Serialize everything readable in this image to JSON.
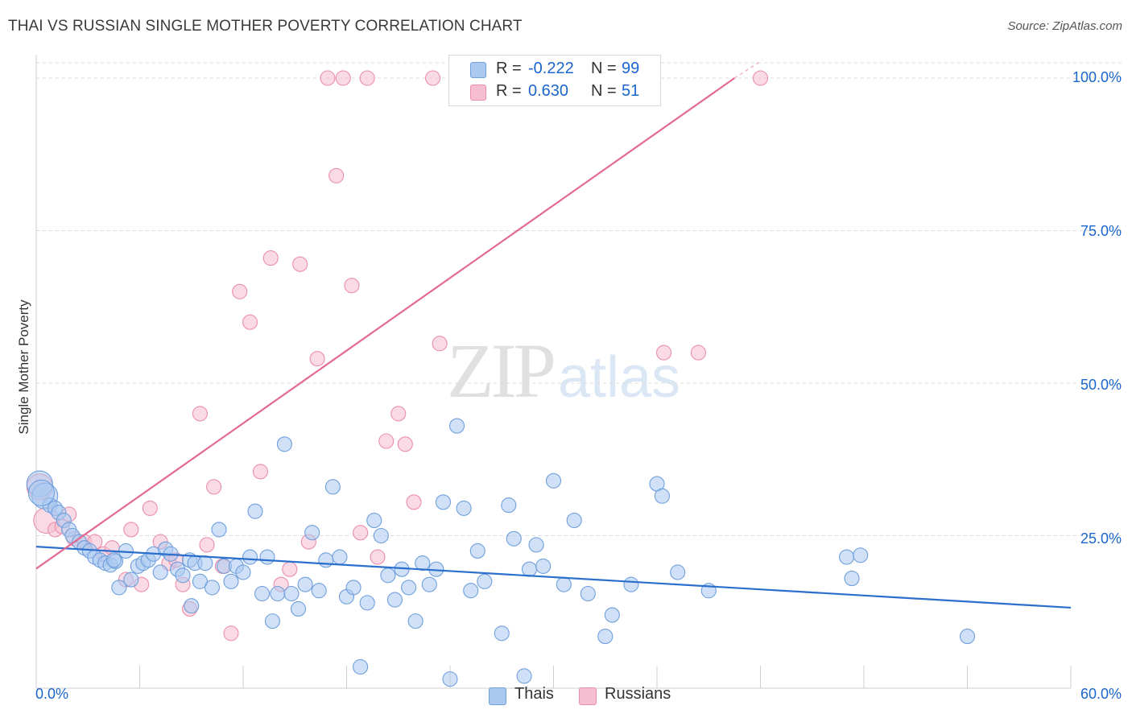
{
  "header": {
    "title": "THAI VS RUSSIAN SINGLE MOTHER POVERTY CORRELATION CHART",
    "source": "Source: ZipAtlas.com"
  },
  "watermark": {
    "zip": "ZIP",
    "atlas": "atlas"
  },
  "legend": {
    "thai": {
      "r_label": "R =",
      "r_value": "-0.222",
      "n_label": "N =",
      "n_value": "99"
    },
    "russian": {
      "r_label": "R =",
      "r_value": "0.630",
      "n_label": "N =",
      "n_value": "51"
    }
  },
  "bottom_legend": {
    "thai": "Thais",
    "russian": "Russians"
  },
  "axes": {
    "ylabel": "Single Mother Poverty",
    "x_min_label": "0.0%",
    "x_max_label": "60.0%",
    "y_ticks": [
      "100.0%",
      "75.0%",
      "50.0%",
      "25.0%"
    ]
  },
  "colors": {
    "thai_fill": "#aac8f0",
    "thai_stroke": "#6f9fdc",
    "thai_line": "#2b6fcc",
    "russian_fill": "#f6bed0",
    "russian_stroke": "#eb8eac",
    "russian_line": "#e26a93",
    "accent_text": "#1a66cc"
  },
  "chart_data": {
    "type": "scatter",
    "xlim": [
      0,
      60
    ],
    "ylim": [
      0,
      100
    ],
    "grid": true,
    "legend_placement": "top-center",
    "series": [
      {
        "name": "Thais",
        "r": -0.222,
        "n": 99,
        "trend": {
          "x": [
            0,
            60
          ],
          "y": [
            23.2,
            13.2
          ]
        },
        "points": [
          [
            0.2,
            33.5
          ],
          [
            0.5,
            31.5
          ],
          [
            0.8,
            30.0
          ],
          [
            1.1,
            29.5
          ],
          [
            1.3,
            28.8
          ],
          [
            1.6,
            27.5
          ],
          [
            1.9,
            26.0
          ],
          [
            2.1,
            25.0
          ],
          [
            2.5,
            24.0
          ],
          [
            2.8,
            23.0
          ],
          [
            3.1,
            22.5
          ],
          [
            3.4,
            21.5
          ],
          [
            3.7,
            21.0
          ],
          [
            4.0,
            20.5
          ],
          [
            4.3,
            20.2
          ],
          [
            4.6,
            20.8
          ],
          [
            4.8,
            16.5
          ],
          [
            5.2,
            22.5
          ],
          [
            5.5,
            17.8
          ],
          [
            5.9,
            20.0
          ],
          [
            6.2,
            20.5
          ],
          [
            6.5,
            21.0
          ],
          [
            6.8,
            22.0
          ],
          [
            7.2,
            19.0
          ],
          [
            7.5,
            22.8
          ],
          [
            7.8,
            22.0
          ],
          [
            8.2,
            19.5
          ],
          [
            8.5,
            18.5
          ],
          [
            8.9,
            21.0
          ],
          [
            9.2,
            20.5
          ],
          [
            9.5,
            17.5
          ],
          [
            9.8,
            20.5
          ],
          [
            10.2,
            16.5
          ],
          [
            10.6,
            26.0
          ],
          [
            10.9,
            20.0
          ],
          [
            11.3,
            17.5
          ],
          [
            11.6,
            20.0
          ],
          [
            12.0,
            19.0
          ],
          [
            12.4,
            21.5
          ],
          [
            12.7,
            29.0
          ],
          [
            13.1,
            15.5
          ],
          [
            13.4,
            21.5
          ],
          [
            13.7,
            11.0
          ],
          [
            14.0,
            15.5
          ],
          [
            14.4,
            40.0
          ],
          [
            14.8,
            15.5
          ],
          [
            15.2,
            13.0
          ],
          [
            15.6,
            17.0
          ],
          [
            16.0,
            25.5
          ],
          [
            16.4,
            16.0
          ],
          [
            16.8,
            21.0
          ],
          [
            17.2,
            33.0
          ],
          [
            17.6,
            21.5
          ],
          [
            18.0,
            15.0
          ],
          [
            18.4,
            16.5
          ],
          [
            18.8,
            3.5
          ],
          [
            19.2,
            14.0
          ],
          [
            19.6,
            27.5
          ],
          [
            20.0,
            25.0
          ],
          [
            20.4,
            18.5
          ],
          [
            20.8,
            14.5
          ],
          [
            21.2,
            19.5
          ],
          [
            21.6,
            16.5
          ],
          [
            22.0,
            11.0
          ],
          [
            22.4,
            20.5
          ],
          [
            22.8,
            17.0
          ],
          [
            23.2,
            19.5
          ],
          [
            23.6,
            30.5
          ],
          [
            24.0,
            1.5
          ],
          [
            24.4,
            43.0
          ],
          [
            24.8,
            29.5
          ],
          [
            25.2,
            16.0
          ],
          [
            25.6,
            22.5
          ],
          [
            26.0,
            17.5
          ],
          [
            27.0,
            9.0
          ],
          [
            27.4,
            30.0
          ],
          [
            27.7,
            24.5
          ],
          [
            28.3,
            2.0
          ],
          [
            28.6,
            19.5
          ],
          [
            29.0,
            23.5
          ],
          [
            29.4,
            20.0
          ],
          [
            30.0,
            34.0
          ],
          [
            30.6,
            17.0
          ],
          [
            31.2,
            27.5
          ],
          [
            32.0,
            15.5
          ],
          [
            33.0,
            8.5
          ],
          [
            33.4,
            12.0
          ],
          [
            34.5,
            17.0
          ],
          [
            36.0,
            33.5
          ],
          [
            36.3,
            31.5
          ],
          [
            37.2,
            19.0
          ],
          [
            39.0,
            16.0
          ],
          [
            47.0,
            21.5
          ],
          [
            47.3,
            18.0
          ],
          [
            47.8,
            21.8
          ],
          [
            54.0,
            8.5
          ],
          [
            0.3,
            32.0
          ],
          [
            9.0,
            13.5
          ],
          [
            4.5,
            21.0
          ]
        ]
      },
      {
        "name": "Russians",
        "r": 0.63,
        "n": 51,
        "trend": {
          "x": [
            0,
            40.5
          ],
          "y": [
            19.6,
            100.0
          ]
        },
        "points": [
          [
            0.2,
            33.0
          ],
          [
            0.6,
            27.5
          ],
          [
            1.1,
            26.0
          ],
          [
            1.5,
            26.5
          ],
          [
            1.9,
            28.5
          ],
          [
            2.2,
            24.5
          ],
          [
            2.8,
            24.0
          ],
          [
            3.4,
            24.0
          ],
          [
            3.9,
            22.0
          ],
          [
            4.4,
            23.0
          ],
          [
            5.2,
            17.8
          ],
          [
            5.5,
            26.0
          ],
          [
            6.1,
            17.0
          ],
          [
            6.6,
            29.5
          ],
          [
            7.2,
            24.0
          ],
          [
            7.7,
            20.5
          ],
          [
            8.1,
            21.0
          ],
          [
            8.5,
            17.0
          ],
          [
            8.9,
            13.0
          ],
          [
            9.5,
            45.0
          ],
          [
            9.9,
            23.5
          ],
          [
            10.3,
            33.0
          ],
          [
            10.8,
            20.0
          ],
          [
            11.3,
            9.0
          ],
          [
            11.8,
            65.0
          ],
          [
            12.4,
            60.0
          ],
          [
            13.0,
            35.5
          ],
          [
            13.6,
            70.5
          ],
          [
            14.2,
            17.0
          ],
          [
            14.7,
            19.5
          ],
          [
            15.3,
            69.5
          ],
          [
            15.8,
            24.0
          ],
          [
            16.3,
            54.0
          ],
          [
            16.9,
            100.0
          ],
          [
            17.4,
            84.0
          ],
          [
            17.8,
            100.0
          ],
          [
            18.3,
            66.0
          ],
          [
            18.8,
            25.5
          ],
          [
            19.2,
            100.0
          ],
          [
            19.8,
            21.5
          ],
          [
            20.3,
            40.5
          ],
          [
            21.0,
            45.0
          ],
          [
            21.4,
            40.0
          ],
          [
            21.9,
            30.5
          ],
          [
            23.0,
            100.0
          ],
          [
            23.4,
            56.5
          ],
          [
            26.0,
            100.0
          ],
          [
            30.5,
            100.0
          ],
          [
            36.4,
            55.0
          ],
          [
            38.4,
            55.0
          ],
          [
            42.0,
            100.0
          ]
        ]
      }
    ]
  }
}
